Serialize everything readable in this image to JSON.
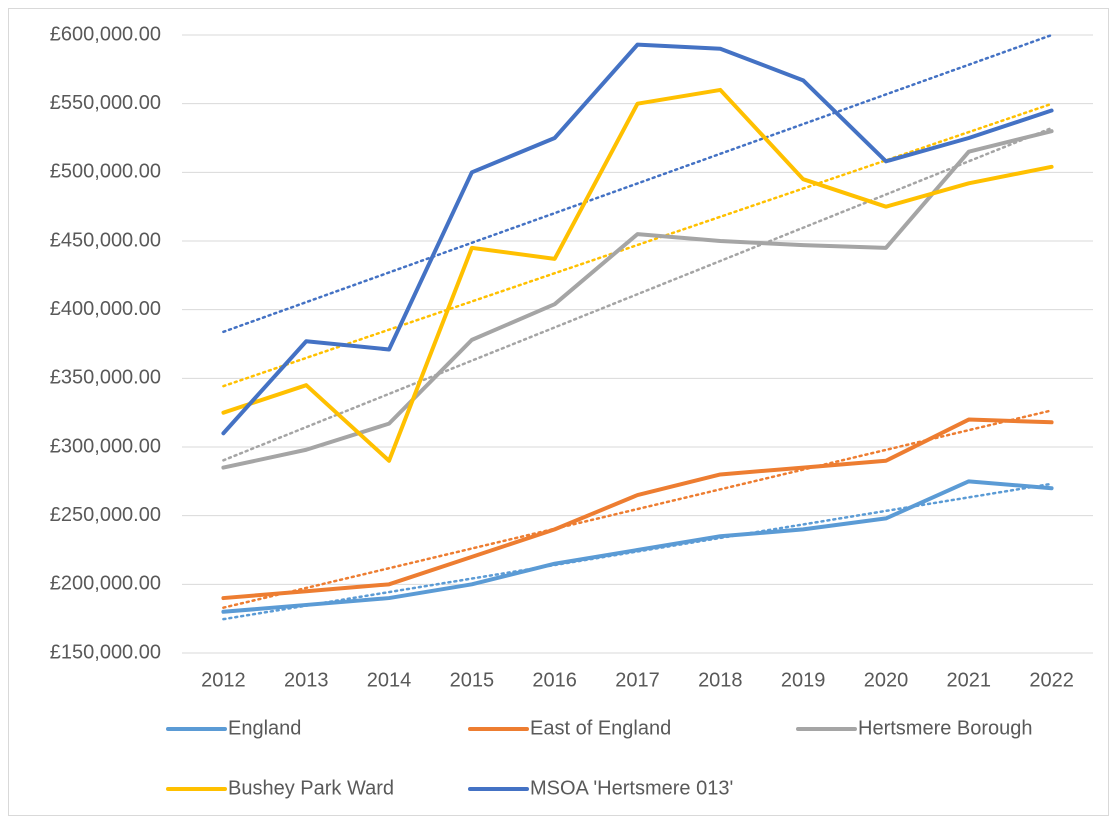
{
  "chart_data": {
    "type": "line",
    "categories": [
      "2012",
      "2013",
      "2014",
      "2015",
      "2016",
      "2017",
      "2018",
      "2019",
      "2020",
      "2021",
      "2022"
    ],
    "series": [
      {
        "name": "England",
        "color": "#5b9bd5",
        "values": [
          180000,
          185000,
          190000,
          200000,
          215000,
          225000,
          235000,
          240000,
          248000,
          275000,
          270000
        ]
      },
      {
        "name": "East of England",
        "color": "#ed7d31",
        "values": [
          190000,
          195000,
          200000,
          220000,
          240000,
          265000,
          280000,
          285000,
          290000,
          320000,
          318000
        ]
      },
      {
        "name": "Hertsmere Borough",
        "color": "#a5a5a5",
        "values": [
          285000,
          298000,
          317000,
          378000,
          404000,
          455000,
          450000,
          447000,
          445000,
          515000,
          530000
        ]
      },
      {
        "name": "Bushey Park Ward",
        "color": "#ffc000",
        "values": [
          325000,
          345000,
          290000,
          445000,
          437000,
          550000,
          560000,
          495000,
          475000,
          492000,
          504000
        ]
      },
      {
        "name": "MSOA 'Hertsmere 013'",
        "color": "#4472c4",
        "values": [
          310000,
          377000,
          371000,
          500000,
          525000,
          593000,
          590000,
          567000,
          508000,
          525000,
          545000
        ]
      }
    ],
    "ylim": [
      150000,
      600000
    ],
    "yticks": [
      {
        "value": 150000,
        "label": "£150,000.00"
      },
      {
        "value": 200000,
        "label": "£200,000.00"
      },
      {
        "value": 250000,
        "label": "£250,000.00"
      },
      {
        "value": 300000,
        "label": "£300,000.00"
      },
      {
        "value": 350000,
        "label": "£350,000.00"
      },
      {
        "value": 400000,
        "label": "£400,000.00"
      },
      {
        "value": 450000,
        "label": "£450,000.00"
      },
      {
        "value": 500000,
        "label": "£500,000.00"
      },
      {
        "value": 550000,
        "label": "£550,000.00"
      },
      {
        "value": 600000,
        "label": "£600,000.00"
      }
    ],
    "grid": true,
    "trendline": true,
    "legend": "bottom"
  }
}
